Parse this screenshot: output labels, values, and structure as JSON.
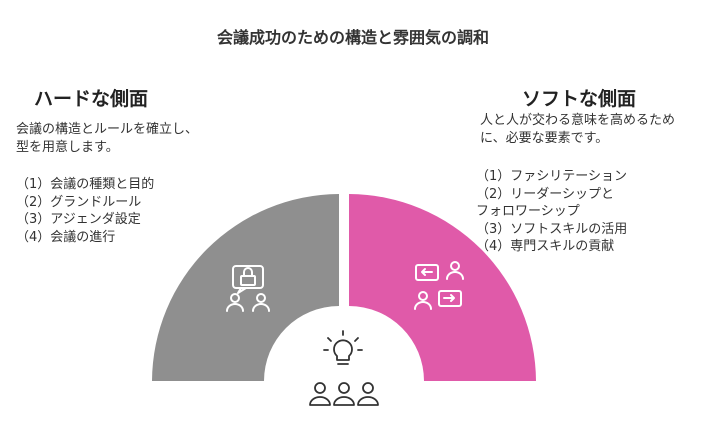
{
  "title": "会議成功のための構造と雰囲気の調和",
  "hard": {
    "heading": "ハードな側面",
    "description": "会議の構造とルールを確立し、型を用意します。",
    "items": [
      "（1）会議の種類と目的",
      "（2）グランドルール",
      "（3）アジェンダ設定",
      "（4）会議の進行"
    ],
    "color": "#8f8f8f",
    "icon": "lock-chat-people-icon"
  },
  "soft": {
    "heading": "ソフトな側面",
    "description": "人と人が交わる意味を高めるために、必要な要素です。",
    "items": [
      "（1）ファシリテーション",
      "（2）リーダーシップと",
      "フォロワーシップ",
      "（3）ソフトスキルの活用",
      "（4）専門スキルの貢献"
    ],
    "color": "#e05aa9",
    "icon": "exchange-people-icon"
  },
  "center": {
    "icons": [
      "lightbulb-icon",
      "people-group-icon"
    ]
  }
}
